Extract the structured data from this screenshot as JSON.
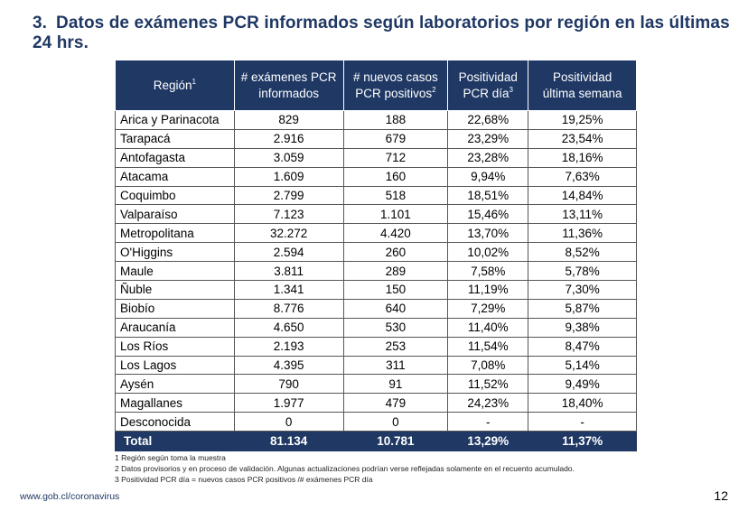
{
  "title": {
    "number": "3.",
    "text": "Datos de exámenes PCR informados según laboratorios por región en las últimas 24 hrs."
  },
  "table": {
    "headers": [
      {
        "line1": "Región",
        "sup": "1",
        "line2": ""
      },
      {
        "line1": "# exámenes PCR",
        "sup": "",
        "line2": "informados"
      },
      {
        "line1": "# nuevos casos",
        "sup": "2",
        "line2": "PCR positivos"
      },
      {
        "line1": "Positividad",
        "sup": "3",
        "line2": "PCR día"
      },
      {
        "line1": "Positividad",
        "sup": "",
        "line2": "última semana"
      }
    ],
    "rows": [
      [
        "Arica y Parinacota",
        "829",
        "188",
        "22,68%",
        "19,25%"
      ],
      [
        "Tarapacá",
        "2.916",
        "679",
        "23,29%",
        "23,54%"
      ],
      [
        "Antofagasta",
        "3.059",
        "712",
        "23,28%",
        "18,16%"
      ],
      [
        "Atacama",
        "1.609",
        "160",
        "9,94%",
        "7,63%"
      ],
      [
        "Coquimbo",
        "2.799",
        "518",
        "18,51%",
        "14,84%"
      ],
      [
        "Valparaíso",
        "7.123",
        "1.101",
        "15,46%",
        "13,11%"
      ],
      [
        "Metropolitana",
        "32.272",
        "4.420",
        "13,70%",
        "11,36%"
      ],
      [
        "O'Higgins",
        "2.594",
        "260",
        "10,02%",
        "8,52%"
      ],
      [
        "Maule",
        "3.811",
        "289",
        "7,58%",
        "5,78%"
      ],
      [
        "Ñuble",
        "1.341",
        "150",
        "11,19%",
        "7,30%"
      ],
      [
        "Biobío",
        "8.776",
        "640",
        "7,29%",
        "5,87%"
      ],
      [
        "Araucanía",
        "4.650",
        "530",
        "11,40%",
        "9,38%"
      ],
      [
        "Los Ríos",
        "2.193",
        "253",
        "11,54%",
        "8,47%"
      ],
      [
        "Los Lagos",
        "4.395",
        "311",
        "7,08%",
        "5,14%"
      ],
      [
        "Aysén",
        "790",
        "91",
        "11,52%",
        "9,49%"
      ],
      [
        "Magallanes",
        "1.977",
        "479",
        "24,23%",
        "18,40%"
      ],
      [
        "Desconocida",
        "0",
        "0",
        "-",
        "-"
      ]
    ],
    "total": [
      "Total",
      "81.134",
      "10.781",
      "13,29%",
      "11,37%"
    ]
  },
  "notes": [
    "1 Región según toma la muestra",
    "2 Datos provisorios y en proceso de validación. Algunas actualizaciones podrían verse reflejadas solamente en el recuento acumulado.",
    "3 Positividad PCR día = nuevos casos PCR positivos /# exámenes PCR día"
  ],
  "footer": {
    "url": "www.gob.cl/coronavirus",
    "page": "12"
  }
}
